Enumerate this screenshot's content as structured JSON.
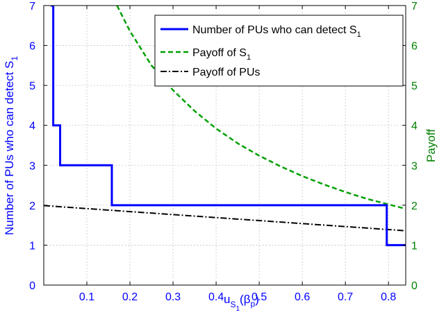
{
  "chart_data": {
    "type": "line",
    "title": "",
    "xlabel": {
      "main": "u",
      "sub1": "S",
      "sub2": "1",
      "paren": "(β",
      "paren_sub": "p",
      "paren_close": ")"
    },
    "ylabel_left": {
      "main": "Number of PUs who can detect S",
      "sub": "1"
    },
    "ylabel_right": "Payoff",
    "xlim": [
      0.0,
      0.84
    ],
    "ylim_left": [
      0,
      7
    ],
    "ylim_right": [
      0,
      7
    ],
    "x_ticks": [
      0.1,
      0.2,
      0.3,
      0.4,
      0.5,
      0.6,
      0.7,
      0.8
    ],
    "x_tick_labels": [
      "0.1",
      "0.2",
      "0.3",
      "0.4",
      "0.5",
      "0.6",
      "0.7",
      "0.8"
    ],
    "y_ticks": [
      0,
      1,
      2,
      3,
      4,
      5,
      6,
      7
    ],
    "y_tick_labels_left": [
      "0",
      "1",
      "2",
      "3",
      "4",
      "5",
      "6",
      "7"
    ],
    "y_tick_labels_right": [
      "0",
      "1",
      "2",
      "3",
      "4",
      "5",
      "6",
      "7"
    ],
    "grid": true,
    "legend_position": "top-right",
    "colors": {
      "left_axis": "#0000ff",
      "right_axis": "#008000",
      "pu_count": "#0000ff",
      "payoff_s1": "#00a000",
      "payoff_pus": "#000000"
    },
    "series": [
      {
        "key": "pu_count",
        "legend_main": "Number of PUs who can detect S",
        "legend_sub": "1",
        "style": "solid",
        "axis": "left",
        "x": [
          0.016,
          0.016,
          0.022,
          0.022,
          0.038,
          0.038,
          0.158,
          0.158,
          0.796,
          0.796,
          0.84
        ],
        "y": [
          7,
          7,
          7,
          4,
          4,
          3,
          3,
          2,
          2,
          1,
          1
        ]
      },
      {
        "key": "payoff_s1",
        "legend_main": "Payoff of S",
        "legend_sub": "1",
        "style": "dashed",
        "axis": "right",
        "x": [
          0.17,
          0.2,
          0.25,
          0.3,
          0.35,
          0.4,
          0.45,
          0.5,
          0.55,
          0.6,
          0.65,
          0.7,
          0.75,
          0.8,
          0.84
        ],
        "y": [
          7.0,
          6.36,
          5.5,
          4.88,
          4.36,
          3.92,
          3.55,
          3.24,
          2.97,
          2.73,
          2.52,
          2.33,
          2.16,
          2.02,
          1.91
        ]
      },
      {
        "key": "payoff_pus",
        "legend_main": "Payoff of PUs",
        "legend_sub": "",
        "style": "dashdot",
        "axis": "right",
        "x": [
          0.0,
          0.84
        ],
        "y": [
          1.99,
          1.36
        ]
      }
    ]
  }
}
